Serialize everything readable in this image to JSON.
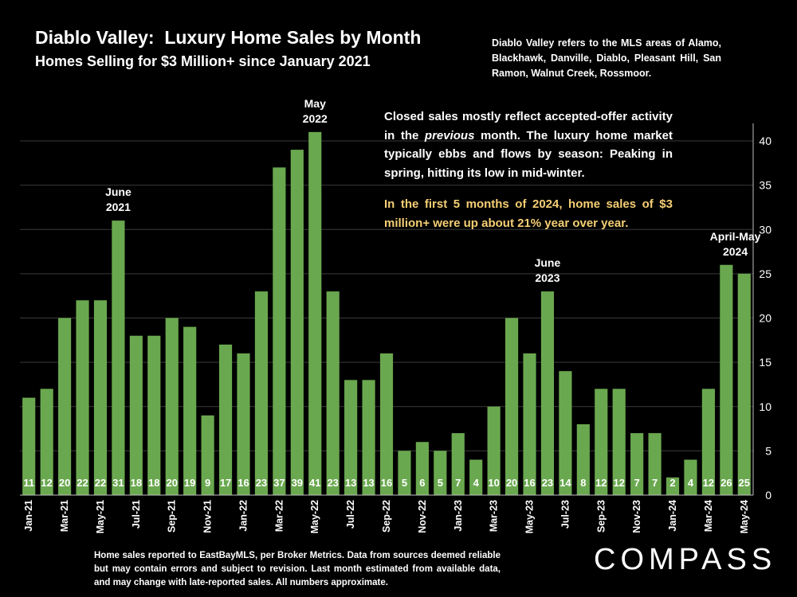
{
  "title": "Diablo Valley:  Luxury Home Sales by Month",
  "subtitle": "Homes Selling for $3 Million+ since January 2021",
  "areas_note": "Diablo Valley refers to the MLS areas of Alamo, Blackhawk, Danville, Diablo, Pleasant Hill, San Ramon, Walnut Creek, Rossmoor.",
  "callout": {
    "text_before": "Closed sales mostly reflect accepted-offer activity in the ",
    "text_italic": "previous",
    "text_after": " month. The luxury home market typically ebbs and flows by season: Peaking in spring, hitting its low in mid-winter.",
    "highlight": "In the first 5 months of 2024, home sales of $3 million+ were up about 21% year over year."
  },
  "footnote": "Home sales reported to EastBayMLS, per Broker Metrics. Data from sources deemed reliable but may contain errors and subject to revision.  Last month estimated from available data, and may change with late-reported sales. All numbers approximate.",
  "logo": "COMPASS",
  "colors": {
    "bar": "#6aa84f",
    "grid": "#3a3a3a",
    "highlight": "#f5cf74"
  },
  "chart_data": {
    "type": "bar",
    "title": "Diablo Valley:  Luxury Home Sales by Month",
    "xlabel": "",
    "ylabel": "",
    "ylim": [
      0,
      40
    ],
    "yticks": [
      0,
      5,
      10,
      15,
      20,
      25,
      30,
      35,
      40
    ],
    "grid": true,
    "y_axis_side": "right",
    "categories": [
      "Jan-21",
      "Feb-21",
      "Mar-21",
      "Apr-21",
      "May-21",
      "Jun-21",
      "Jul-21",
      "Aug-21",
      "Sep-21",
      "Oct-21",
      "Nov-21",
      "Dec-21",
      "Jan-22",
      "Feb-22",
      "Mar-22",
      "Apr-22",
      "May-22",
      "Jun-22",
      "Jul-22",
      "Aug-22",
      "Sep-22",
      "Oct-22",
      "Nov-22",
      "Dec-22",
      "Jan-23",
      "Feb-23",
      "Mar-23",
      "Apr-23",
      "May-23",
      "Jun-23",
      "Jul-23",
      "Aug-23",
      "Sep-23",
      "Oct-23",
      "Nov-23",
      "Dec-23",
      "Jan-24",
      "Feb-24",
      "Mar-24",
      "Apr-24",
      "May-24"
    ],
    "tick_labels": [
      "Jan-21",
      "",
      "Mar-21",
      "",
      "May-21",
      "",
      "Jul-21",
      "",
      "Sep-21",
      "",
      "Nov-21",
      "",
      "Jan-22",
      "",
      "Mar-22",
      "",
      "May-22",
      "",
      "Jul-22",
      "",
      "Sep-22",
      "",
      "Nov-22",
      "",
      "Jan-23",
      "",
      "Mar-23",
      "",
      "May-23",
      "",
      "Jul-23",
      "",
      "Sep-23",
      "",
      "Nov-23",
      "",
      "Jan-24",
      "",
      "Mar-24",
      "",
      "May-24"
    ],
    "values": [
      11,
      12,
      20,
      22,
      22,
      31,
      18,
      18,
      20,
      19,
      9,
      17,
      16,
      23,
      37,
      39,
      41,
      23,
      13,
      13,
      16,
      5,
      6,
      5,
      7,
      4,
      10,
      20,
      16,
      23,
      14,
      8,
      12,
      12,
      7,
      7,
      2,
      4,
      12,
      26,
      25
    ],
    "annotations": [
      {
        "lines": [
          "June",
          "2021"
        ],
        "index": 5
      },
      {
        "lines": [
          "May",
          "2022"
        ],
        "index": 16
      },
      {
        "lines": [
          "June",
          "2023"
        ],
        "index": 29
      },
      {
        "lines": [
          "April-May",
          "2024"
        ],
        "index": 39.5
      }
    ]
  }
}
